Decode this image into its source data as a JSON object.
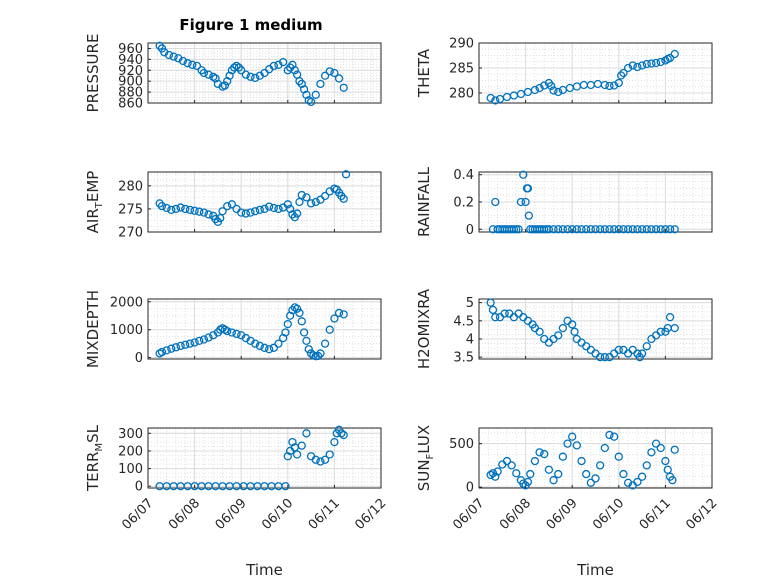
{
  "figure": {
    "title": "Figure 1 medium"
  },
  "chart_data": [
    {
      "type": "scatter",
      "ylabel": "PRESSURE",
      "xlabel": "",
      "xlim": [
        0,
        5
      ],
      "ylim": [
        860,
        970
      ],
      "yticks": [
        960,
        940,
        920,
        900,
        880,
        860
      ],
      "x": [
        0.25,
        0.3,
        0.35,
        0.45,
        0.55,
        0.65,
        0.75,
        0.85,
        0.95,
        1.05,
        1.15,
        1.2,
        1.3,
        1.4,
        1.45,
        1.5,
        1.6,
        1.65,
        1.7,
        1.75,
        1.8,
        1.85,
        1.9,
        1.95,
        2.0,
        2.1,
        2.2,
        2.3,
        2.4,
        2.5,
        2.6,
        2.7,
        2.8,
        2.9,
        3.0,
        3.05,
        3.1,
        3.15,
        3.2,
        3.25,
        3.3,
        3.35,
        3.4,
        3.45,
        3.5,
        3.6,
        3.7,
        3.8,
        3.9,
        4.0,
        4.1,
        4.2
      ],
      "y": [
        965,
        960,
        953,
        948,
        945,
        942,
        937,
        933,
        930,
        928,
        920,
        915,
        912,
        908,
        905,
        895,
        890,
        892,
        900,
        910,
        920,
        925,
        928,
        925,
        920,
        912,
        908,
        906,
        910,
        915,
        922,
        928,
        930,
        935,
        920,
        925,
        930,
        920,
        912,
        900,
        895,
        885,
        875,
        865,
        862,
        875,
        895,
        910,
        918,
        915,
        905,
        888
      ]
    },
    {
      "type": "scatter",
      "ylabel": "THETA",
      "xlabel": "",
      "xlim": [
        0,
        5
      ],
      "ylim": [
        278,
        290
      ],
      "yticks": [
        290,
        285,
        280
      ],
      "x": [
        0.25,
        0.35,
        0.45,
        0.6,
        0.75,
        0.9,
        1.05,
        1.2,
        1.3,
        1.4,
        1.5,
        1.55,
        1.6,
        1.7,
        1.8,
        1.95,
        2.1,
        2.25,
        2.4,
        2.55,
        2.7,
        2.8,
        2.9,
        3.0,
        3.05,
        3.1,
        3.2,
        3.3,
        3.4,
        3.5,
        3.6,
        3.7,
        3.8,
        3.9,
        4.0,
        4.05,
        4.1,
        4.2
      ],
      "y": [
        279,
        278.5,
        278.8,
        279.2,
        279.5,
        279.8,
        280.2,
        280.6,
        281,
        281.5,
        282,
        281.4,
        280.5,
        280.2,
        280.6,
        281,
        281.3,
        281.6,
        281.6,
        281.8,
        281.6,
        281.4,
        281.5,
        282,
        283.5,
        284,
        285,
        285.5,
        285.2,
        285.5,
        285.8,
        285.9,
        286,
        286.2,
        286.5,
        286.8,
        287,
        287.8
      ]
    },
    {
      "type": "scatter",
      "ylabel": "AIR",
      "ylabel_sub": "T",
      "ylabel_rest": "EMP",
      "xlabel": "",
      "xlim": [
        0,
        5
      ],
      "ylim": [
        270,
        283
      ],
      "yticks": [
        280,
        275,
        270
      ],
      "x": [
        0.25,
        0.3,
        0.4,
        0.5,
        0.6,
        0.7,
        0.8,
        0.9,
        1.0,
        1.1,
        1.2,
        1.3,
        1.4,
        1.45,
        1.5,
        1.55,
        1.6,
        1.7,
        1.8,
        1.9,
        2.0,
        2.1,
        2.2,
        2.3,
        2.4,
        2.5,
        2.6,
        2.7,
        2.8,
        2.9,
        3.0,
        3.05,
        3.1,
        3.15,
        3.2,
        3.25,
        3.3,
        3.4,
        3.5,
        3.6,
        3.7,
        3.8,
        3.9,
        4.0,
        4.05,
        4.1,
        4.15,
        4.2,
        4.25
      ],
      "y": [
        276.2,
        275.6,
        275.2,
        274.8,
        275,
        275.3,
        275,
        274.8,
        274.6,
        274.4,
        274.2,
        273.8,
        273.5,
        272.8,
        272.2,
        273,
        274.5,
        275.6,
        276,
        275,
        274.2,
        274,
        274.2,
        274.5,
        274.8,
        275,
        275.5,
        275.2,
        275,
        275.3,
        276,
        275,
        273.8,
        273.2,
        274,
        276.5,
        278,
        277.5,
        276.2,
        276.5,
        277,
        277.8,
        278.8,
        279.4,
        279.2,
        278.5,
        277.8,
        277.2,
        282.5
      ]
    },
    {
      "type": "scatter",
      "ylabel": "RAINFALL",
      "xlabel": "",
      "xlim": [
        0,
        5
      ],
      "ylim": [
        -0.02,
        0.42
      ],
      "yticks": [
        0.4,
        0.2,
        0
      ],
      "x": [
        0.3,
        0.35,
        0.4,
        0.45,
        0.5,
        0.55,
        0.6,
        0.65,
        0.7,
        0.75,
        0.8,
        0.85,
        0.9,
        0.95,
        1.0,
        1.03,
        1.05,
        1.07,
        1.1,
        1.15,
        1.2,
        1.25,
        1.3,
        1.35,
        1.4,
        1.45,
        1.5,
        1.6,
        1.7,
        1.8,
        1.9,
        2.0,
        2.1,
        2.2,
        2.3,
        2.4,
        2.5,
        2.6,
        2.7,
        2.8,
        2.9,
        3.0,
        3.1,
        3.2,
        3.3,
        3.4,
        3.5,
        3.6,
        3.7,
        3.8,
        3.9,
        4.0,
        4.1,
        4.2
      ],
      "y": [
        0,
        0.2,
        0,
        0,
        0,
        0,
        0,
        0,
        0,
        0,
        0,
        0,
        0.2,
        0.4,
        0.2,
        0.3,
        0.3,
        0.1,
        0,
        0,
        0,
        0,
        0,
        0,
        0,
        0,
        0,
        0,
        0,
        0,
        0,
        0,
        0,
        0,
        0,
        0,
        0,
        0,
        0,
        0,
        0,
        0,
        0,
        0,
        0,
        0,
        0,
        0,
        0,
        0,
        0,
        0,
        0,
        0
      ]
    },
    {
      "type": "scatter",
      "ylabel": "MIXDEPTH",
      "xlabel": "",
      "xlim": [
        0,
        5
      ],
      "ylim": [
        -50,
        2100
      ],
      "yticks": [
        2000,
        1000,
        0
      ],
      "x": [
        0.25,
        0.3,
        0.4,
        0.5,
        0.6,
        0.7,
        0.8,
        0.9,
        1.0,
        1.1,
        1.2,
        1.3,
        1.4,
        1.5,
        1.55,
        1.6,
        1.65,
        1.7,
        1.8,
        1.9,
        2.0,
        2.1,
        2.2,
        2.3,
        2.4,
        2.5,
        2.6,
        2.7,
        2.8,
        2.9,
        2.95,
        3.0,
        3.05,
        3.1,
        3.15,
        3.2,
        3.25,
        3.3,
        3.35,
        3.4,
        3.45,
        3.5,
        3.55,
        3.6,
        3.65,
        3.7,
        3.8,
        3.9,
        4.0,
        4.1,
        4.2
      ],
      "y": [
        150,
        200,
        260,
        320,
        370,
        420,
        460,
        500,
        540,
        600,
        650,
        720,
        800,
        900,
        1000,
        1050,
        1000,
        950,
        900,
        850,
        800,
        700,
        600,
        500,
        420,
        350,
        300,
        350,
        500,
        700,
        900,
        1200,
        1500,
        1700,
        1800,
        1750,
        1600,
        1300,
        900,
        600,
        300,
        150,
        80,
        50,
        60,
        150,
        500,
        1000,
        1400,
        1600,
        1550
      ]
    },
    {
      "type": "scatter",
      "ylabel": "H2OMIXRA",
      "xlabel": "",
      "xlim": [
        0,
        5
      ],
      "ylim": [
        3.45,
        5.1
      ],
      "yticks": [
        5,
        4.5,
        4,
        3.5
      ],
      "x": [
        0.25,
        0.3,
        0.35,
        0.45,
        0.55,
        0.65,
        0.75,
        0.85,
        0.95,
        1.05,
        1.15,
        1.2,
        1.3,
        1.4,
        1.5,
        1.6,
        1.7,
        1.8,
        1.9,
        2.0,
        2.05,
        2.1,
        2.2,
        2.3,
        2.4,
        2.5,
        2.6,
        2.7,
        2.8,
        2.9,
        3.0,
        3.1,
        3.2,
        3.3,
        3.4,
        3.45,
        3.5,
        3.6,
        3.7,
        3.8,
        3.9,
        4.0,
        4.05,
        4.1,
        4.2
      ],
      "y": [
        5,
        4.8,
        4.6,
        4.6,
        4.7,
        4.7,
        4.6,
        4.7,
        4.6,
        4.5,
        4.4,
        4.3,
        4.2,
        4,
        3.9,
        4,
        4.1,
        4.3,
        4.5,
        4.4,
        4.2,
        4,
        3.9,
        3.8,
        3.7,
        3.6,
        3.5,
        3.5,
        3.5,
        3.6,
        3.7,
        3.7,
        3.6,
        3.7,
        3.6,
        3.5,
        3.6,
        3.8,
        4,
        4.1,
        4.2,
        4.2,
        4.3,
        4.6,
        4.3
      ]
    },
    {
      "type": "scatter",
      "ylabel": "TERR",
      "ylabel_sub": "M",
      "ylabel_rest": "SL",
      "xlabel": "Time",
      "xlim": [
        0,
        5
      ],
      "ylim": [
        -10,
        330
      ],
      "yticks": [
        300,
        200,
        100,
        0
      ],
      "xticks": [
        "06/07",
        "06/08",
        "06/09",
        "06/10",
        "06/11",
        "06/12"
      ],
      "x": [
        0.25,
        0.4,
        0.55,
        0.7,
        0.85,
        1.0,
        1.15,
        1.3,
        1.45,
        1.6,
        1.75,
        1.9,
        2.05,
        2.2,
        2.35,
        2.5,
        2.65,
        2.8,
        2.95,
        3.0,
        3.05,
        3.1,
        3.15,
        3.2,
        3.3,
        3.4,
        3.5,
        3.6,
        3.7,
        3.8,
        3.9,
        4.0,
        4.05,
        4.1,
        4.15,
        4.2
      ],
      "y": [
        0,
        0,
        0,
        0,
        0,
        0,
        0,
        0,
        0,
        0,
        0,
        0,
        0,
        0,
        0,
        0,
        0,
        0,
        0,
        170,
        200,
        250,
        220,
        180,
        230,
        300,
        170,
        150,
        140,
        150,
        180,
        250,
        300,
        320,
        300,
        290
      ]
    },
    {
      "type": "scatter",
      "ylabel": "SUN",
      "ylabel_sub": "F",
      "ylabel_rest": "LUX",
      "xlabel": "Time",
      "xlim": [
        0,
        5
      ],
      "ylim": [
        -10,
        680
      ],
      "yticks": [
        500,
        0
      ],
      "xticks": [
        "06/07",
        "06/08",
        "06/09",
        "06/10",
        "06/11",
        "06/12"
      ],
      "x": [
        0.25,
        0.3,
        0.35,
        0.4,
        0.5,
        0.6,
        0.7,
        0.8,
        0.9,
        0.95,
        1.0,
        1.05,
        1.1,
        1.2,
        1.3,
        1.4,
        1.5,
        1.6,
        1.7,
        1.8,
        1.9,
        2.0,
        2.1,
        2.2,
        2.3,
        2.4,
        2.5,
        2.6,
        2.7,
        2.8,
        2.9,
        3.0,
        3.1,
        3.2,
        3.3,
        3.4,
        3.5,
        3.6,
        3.7,
        3.8,
        3.9,
        4.0,
        4.05,
        4.1,
        4.15,
        4.2
      ],
      "y": [
        140,
        160,
        120,
        180,
        260,
        300,
        250,
        160,
        80,
        40,
        20,
        60,
        150,
        300,
        400,
        380,
        200,
        80,
        150,
        350,
        500,
        580,
        480,
        300,
        150,
        50,
        100,
        250,
        450,
        600,
        580,
        350,
        150,
        50,
        20,
        60,
        120,
        250,
        400,
        500,
        450,
        300,
        200,
        120,
        80,
        430
      ]
    }
  ],
  "panels_meta": [
    {
      "label_full": "PRESSURE"
    },
    {
      "label_full": "THETA"
    },
    {
      "label_full": "AIR_TEMP"
    },
    {
      "label_full": "RAINFALL"
    },
    {
      "label_full": "MIXDEPTH"
    },
    {
      "label_full": "H2OMIXRA"
    },
    {
      "label_full": "TERR_MSL"
    },
    {
      "label_full": "SUN_FLUX"
    }
  ]
}
